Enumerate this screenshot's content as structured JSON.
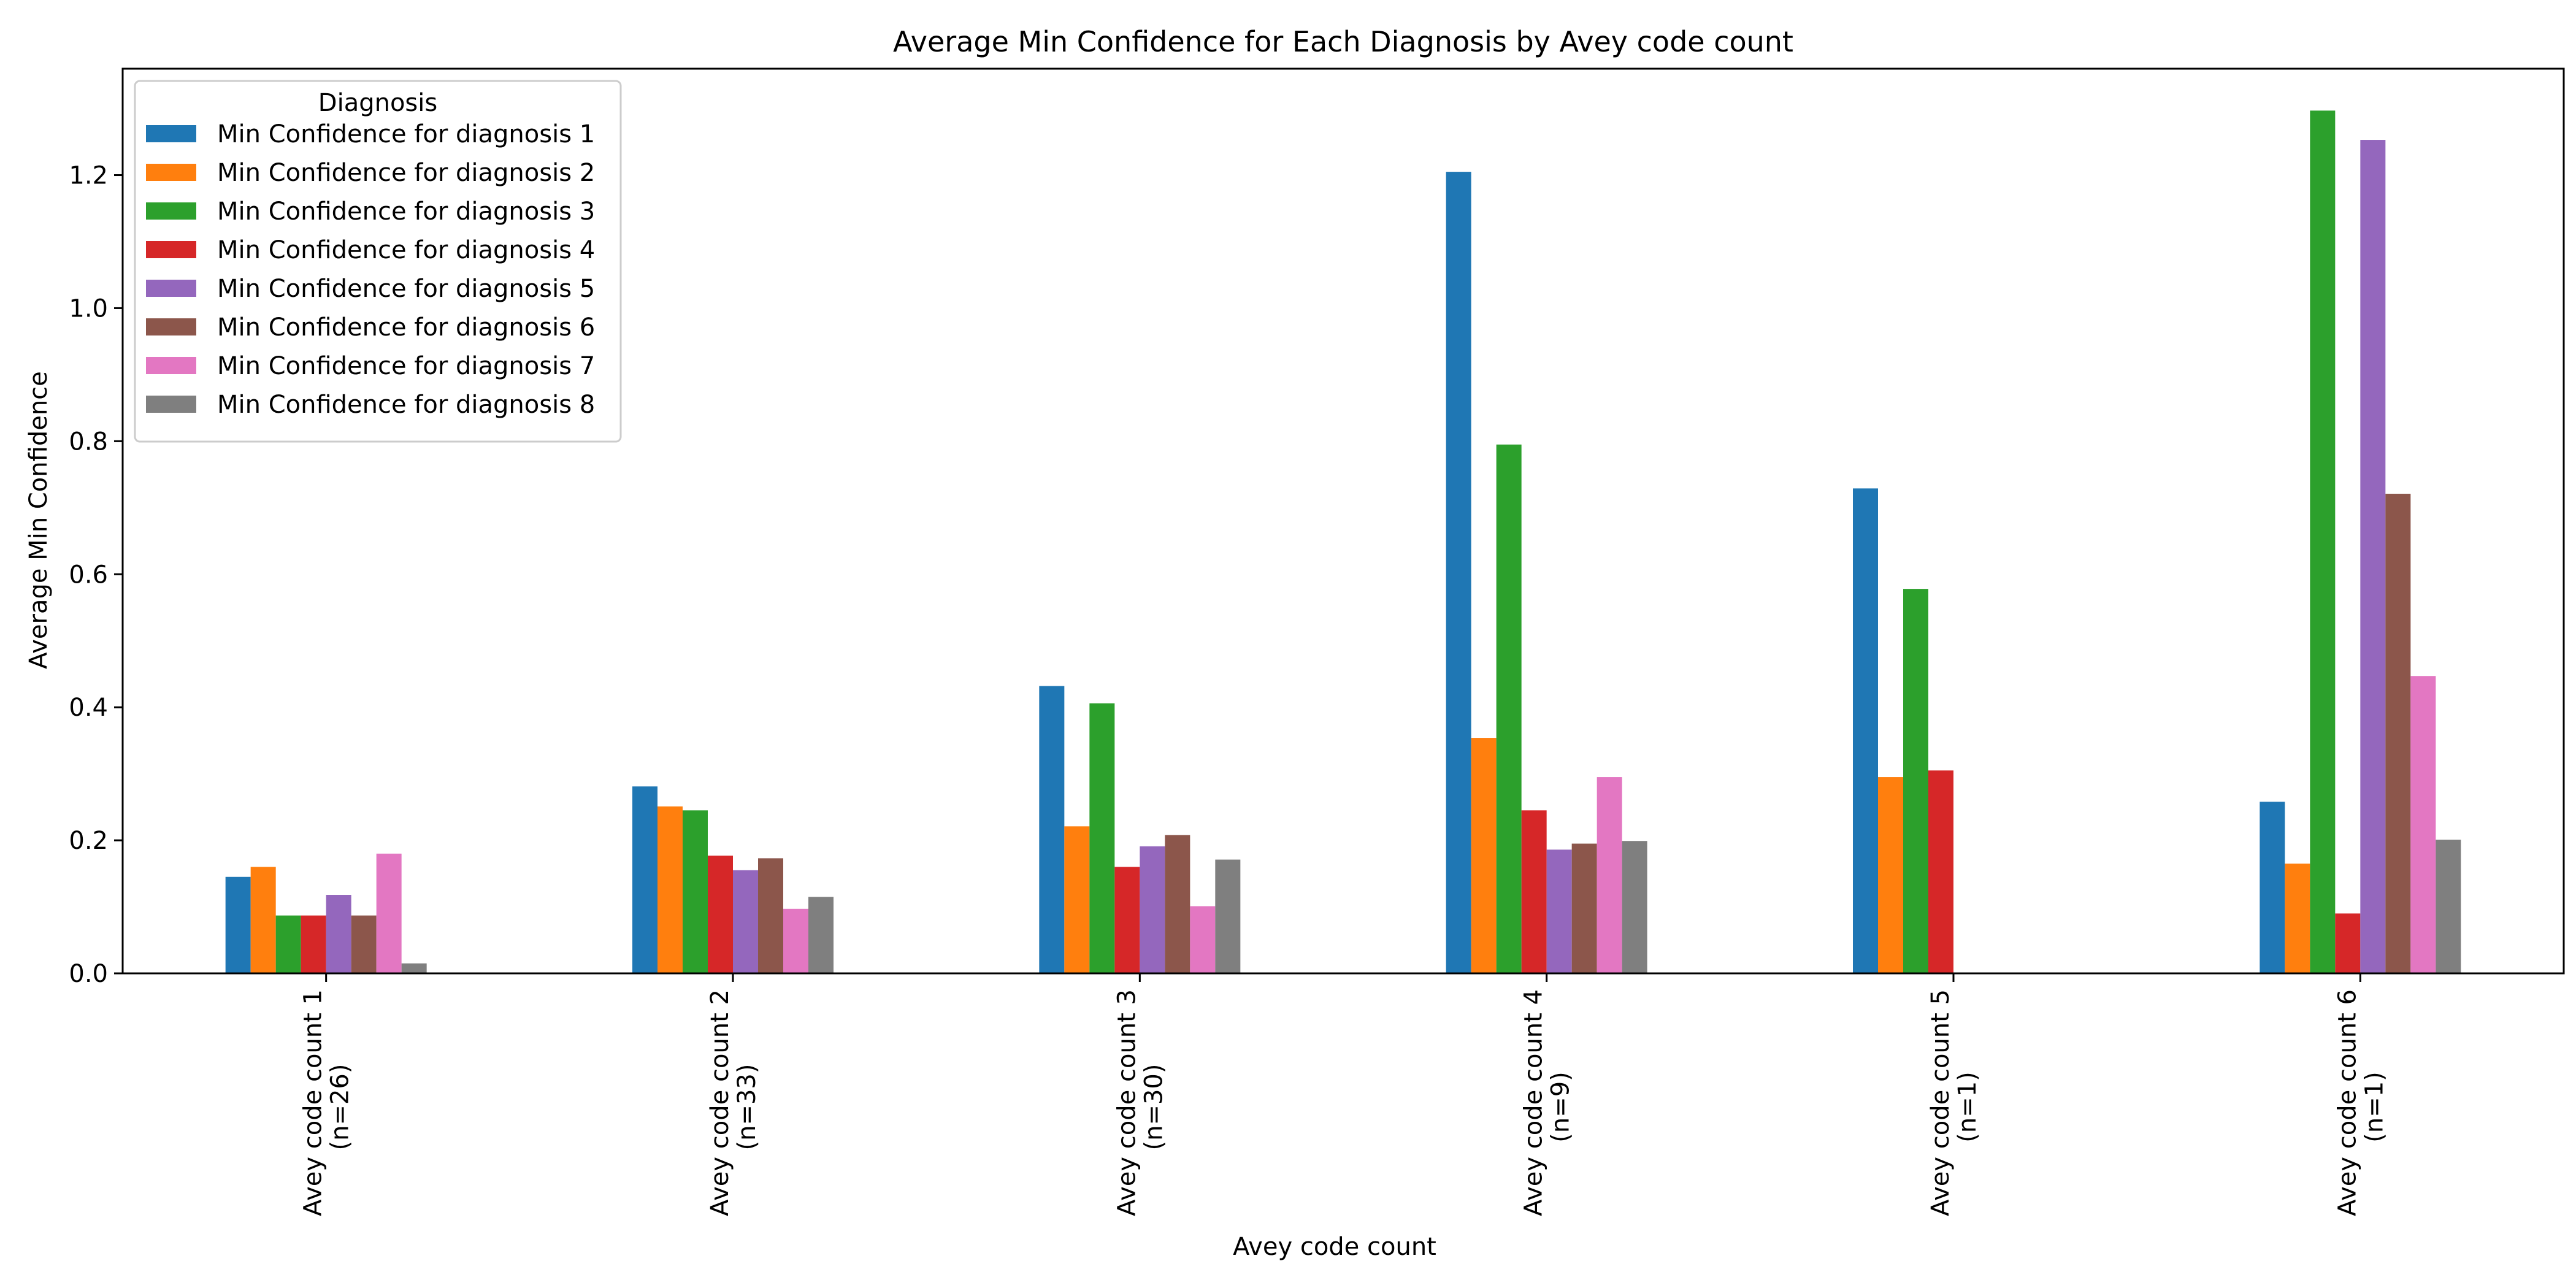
{
  "chart_data": {
    "type": "bar",
    "title": "Average Min Confidence for Each Diagnosis by Avey code count",
    "xlabel": "Avey code count",
    "ylabel": "Average Min Confidence",
    "ylim": [
      0,
      1.36
    ],
    "yticks": [
      "0.0",
      "0.2",
      "0.4",
      "0.6",
      "0.8",
      "1.0",
      "1.2"
    ],
    "ytick_values": [
      0,
      0.2,
      0.4,
      0.6,
      0.8,
      1.0,
      1.2
    ],
    "grid": false,
    "legend": {
      "title": "Diagnosis",
      "placement": "top-left"
    },
    "categories": [
      {
        "line1": "Avey code count 1",
        "line2": "(n=26)"
      },
      {
        "line1": "Avey code count 2",
        "line2": "(n=33)"
      },
      {
        "line1": "Avey code count 3",
        "line2": "(n=30)"
      },
      {
        "line1": "Avey code count 4",
        "line2": "(n=9)"
      },
      {
        "line1": "Avey code count 5",
        "line2": "(n=1)"
      },
      {
        "line1": "Avey code count 6",
        "line2": "(n=1)"
      }
    ],
    "series": [
      {
        "name": "Min Confidence for diagnosis 1",
        "color": "#1f77b4",
        "values": [
          0.145,
          0.281,
          0.432,
          1.205,
          0.729,
          0.258
        ]
      },
      {
        "name": "Min Confidence for diagnosis 2",
        "color": "#ff7f0e",
        "values": [
          0.16,
          0.251,
          0.221,
          0.354,
          0.295,
          0.165
        ]
      },
      {
        "name": "Min Confidence for diagnosis 3",
        "color": "#2ca02c",
        "values": [
          0.087,
          0.245,
          0.406,
          0.795,
          0.578,
          1.297
        ]
      },
      {
        "name": "Min Confidence for diagnosis 4",
        "color": "#d62728",
        "values": [
          0.087,
          0.177,
          0.16,
          0.245,
          0.305,
          0.09
        ]
      },
      {
        "name": "Min Confidence for diagnosis 5",
        "color": "#9467bd",
        "values": [
          0.118,
          0.155,
          0.191,
          0.186,
          null,
          1.253
        ]
      },
      {
        "name": "Min Confidence for diagnosis 6",
        "color": "#8c564b",
        "values": [
          0.087,
          0.173,
          0.208,
          0.195,
          null,
          0.721
        ]
      },
      {
        "name": "Min Confidence for diagnosis 7",
        "color": "#e377c2",
        "values": [
          0.18,
          0.097,
          0.101,
          0.295,
          null,
          0.447
        ]
      },
      {
        "name": "Min Confidence for diagnosis 8",
        "color": "#7f7f7f",
        "values": [
          0.015,
          0.115,
          0.171,
          0.199,
          null,
          0.201
        ]
      }
    ]
  }
}
